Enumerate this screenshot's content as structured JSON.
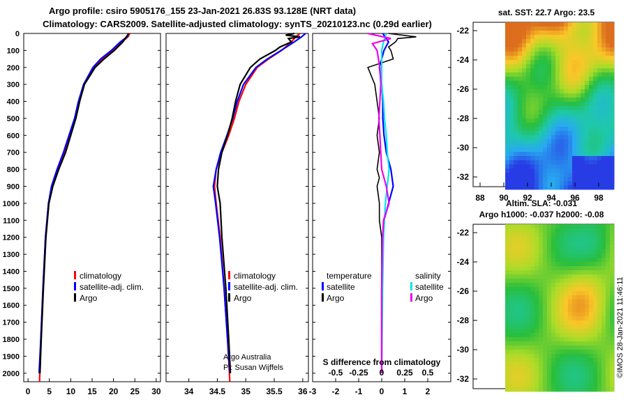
{
  "header": {
    "line1": "Argo profile: csiro 5905176_155 23-Jan-2021 26.83S 93.128E (NRT data)",
    "line2": "Climatology: CARS2009. Satellite-adjusted climatology: synTS_20210123.nc (0.29d earlier)"
  },
  "colors": {
    "climatology": "#ff0000",
    "satellite_adj": "#0000ff",
    "argo": "#000000",
    "sat_salinity": "#00e5ee",
    "argo_salinity": "#ee00ee"
  },
  "chart_data": [
    {
      "type": "line",
      "panel": "temperature",
      "ylabel": "",
      "ylim": [
        2050,
        0
      ],
      "xlim": [
        -1,
        31
      ],
      "y_ticks": [
        0,
        100,
        200,
        300,
        400,
        500,
        600,
        700,
        800,
        900,
        1000,
        1100,
        1200,
        1300,
        1400,
        1500,
        1600,
        1700,
        1800,
        1900,
        2000
      ],
      "x_ticks": [
        0,
        5,
        10,
        15,
        20,
        25,
        30
      ],
      "legend": [
        "climatology",
        "satellite-adj. clim.",
        "Argo"
      ],
      "series": [
        {
          "name": "climatology",
          "color": "#ff0000",
          "depth": [
            0,
            20,
            50,
            100,
            150,
            200,
            300,
            400,
            500,
            600,
            700,
            800,
            900,
            1000,
            1200,
            1500,
            1800,
            2050
          ],
          "values": [
            23.8,
            23.4,
            22.0,
            19.8,
            17.3,
            15.4,
            13.1,
            11.9,
            11.0,
            9.8,
            8.5,
            6.9,
            5.6,
            4.8,
            4.1,
            3.5,
            3.0,
            2.7
          ]
        },
        {
          "name": "satellite-adj. clim.",
          "color": "#0000ff",
          "depth": [
            0,
            20,
            50,
            100,
            150,
            200,
            300,
            400,
            500,
            600,
            700,
            800,
            900,
            1000,
            1200,
            1500,
            1800,
            2000
          ],
          "values": [
            23.5,
            23.2,
            21.6,
            19.5,
            17.0,
            15.2,
            13.0,
            11.8,
            10.9,
            9.6,
            8.3,
            6.8,
            5.5,
            4.8,
            4.1,
            3.5,
            3.0,
            2.6
          ]
        },
        {
          "name": "Argo",
          "color": "#000000",
          "depth": [
            0,
            20,
            50,
            100,
            150,
            200,
            300,
            400,
            500,
            600,
            700,
            800,
            900,
            1000,
            1200,
            1500,
            1800,
            2000
          ],
          "values": [
            23.6,
            23.0,
            22.2,
            20.2,
            17.8,
            15.7,
            13.2,
            12.1,
            11.2,
            10.0,
            8.8,
            7.2,
            5.8,
            4.9,
            4.2,
            3.6,
            3.1,
            2.8
          ]
        }
      ]
    },
    {
      "type": "line",
      "panel": "salinity",
      "ylim": [
        2050,
        0
      ],
      "xlim": [
        33.6,
        36.1
      ],
      "x_ticks": [
        34,
        34.5,
        35,
        35.5,
        36
      ],
      "x_tick_labels": [
        "34",
        "34.5",
        "35",
        "35.5",
        "36"
      ],
      "legend": [
        "climatology",
        "satellite-adj. clim.",
        "Argo"
      ],
      "credit": [
        "Argo Australia",
        "PI: Susan Wijffels"
      ],
      "series": [
        {
          "name": "climatology",
          "color": "#ff0000",
          "depth": [
            0,
            20,
            50,
            100,
            150,
            200,
            300,
            400,
            500,
            600,
            700,
            800,
            900,
            1000,
            1200,
            1500,
            1800,
            2050
          ],
          "values": [
            35.95,
            35.88,
            35.8,
            35.63,
            35.4,
            35.2,
            35.0,
            34.88,
            34.8,
            34.7,
            34.58,
            34.48,
            34.45,
            34.48,
            34.55,
            34.62,
            34.68,
            34.72
          ]
        },
        {
          "name": "satellite-adj. clim.",
          "color": "#0000ff",
          "depth": [
            0,
            20,
            50,
            100,
            150,
            200,
            300,
            400,
            500,
            600,
            700,
            800,
            900,
            1000,
            1200,
            1500,
            1800,
            2000
          ],
          "values": [
            36.05,
            35.98,
            35.85,
            35.62,
            35.38,
            35.18,
            34.96,
            34.85,
            34.77,
            34.67,
            34.56,
            34.48,
            34.43,
            34.47,
            34.54,
            34.62,
            34.68,
            34.72
          ]
        },
        {
          "name": "Argo",
          "color": "#000000",
          "depth": [
            0,
            10,
            20,
            30,
            50,
            80,
            100,
            150,
            200,
            300,
            400,
            500,
            600,
            700,
            800,
            900,
            1000,
            1200,
            1500,
            1800,
            2000
          ],
          "values": [
            35.85,
            35.7,
            35.95,
            35.75,
            35.8,
            35.6,
            35.52,
            35.25,
            35.08,
            34.9,
            34.82,
            34.76,
            34.68,
            34.58,
            34.52,
            34.5,
            34.55,
            34.58,
            34.65,
            34.7,
            34.73
          ]
        }
      ]
    },
    {
      "type": "line",
      "panel": "difference",
      "title": "S difference from climatology",
      "ylim": [
        2050,
        0
      ],
      "xlim": [
        -3,
        3
      ],
      "x_ticks": [
        -3,
        -2,
        -1,
        0,
        1,
        2
      ],
      "x_tick_labels": [
        "-3",
        "-2",
        "-1",
        "0",
        "1",
        "2"
      ],
      "sal_ticks": [
        -0.5,
        -0.25,
        0,
        0.25,
        0.5
      ],
      "sal_tick_labels": [
        "-0.5",
        "-0.25",
        "0",
        "0.25",
        "0.5"
      ],
      "legend": {
        "temperature_title": "temperature",
        "salinity_title": "salinity",
        "items": [
          "satellite",
          "Argo",
          "satellite",
          "Argo"
        ]
      },
      "series": [
        {
          "name": "temperature satellite",
          "color": "#0000ff",
          "depth": [
            0,
            50,
            100,
            150,
            200,
            300,
            400,
            500,
            600,
            700,
            800,
            900,
            1000,
            1100,
            1200,
            1500,
            2000
          ],
          "values": [
            0.05,
            0.3,
            0.1,
            0.0,
            -0.1,
            0.0,
            0.05,
            0.05,
            0.1,
            0.2,
            0.4,
            0.5,
            0.3,
            0.1,
            0.05,
            0.0,
            0.0
          ]
        },
        {
          "name": "temperature Argo",
          "color": "#000000",
          "depth": [
            0,
            20,
            30,
            50,
            80,
            100,
            150,
            200,
            300,
            400,
            500,
            600,
            700,
            800,
            850,
            900,
            1000,
            1100,
            1200,
            1500,
            2000
          ],
          "values": [
            0.3,
            1.5,
            0.7,
            0.6,
            0.3,
            0.4,
            0.5,
            -0.6,
            -0.3,
            -0.2,
            -0.1,
            -0.2,
            -0.1,
            -0.2,
            -0.1,
            -0.2,
            -0.1,
            -0.1,
            0.0,
            0.0,
            0.0
          ]
        },
        {
          "name": "salinity satellite",
          "color": "#00e5ee",
          "depth": [
            0,
            50,
            100,
            200,
            300,
            400,
            500,
            600,
            700,
            800,
            900,
            1000,
            1200,
            1500,
            2000
          ],
          "values": [
            0.05,
            0.02,
            0.0,
            0.0,
            0.0,
            0.02,
            0.03,
            0.05,
            0.06,
            0.08,
            0.06,
            0.04,
            0.02,
            0.01,
            0.0
          ]
        },
        {
          "name": "salinity Argo",
          "color": "#ee00ee",
          "depth": [
            0,
            30,
            60,
            100,
            200,
            300,
            400,
            500,
            600,
            700,
            800,
            900,
            1000,
            1100,
            1200,
            1500,
            2000
          ],
          "values": [
            -0.15,
            0.1,
            -0.1,
            -0.05,
            -0.02,
            -0.01,
            -0.02,
            -0.03,
            -0.02,
            -0.01,
            0.0,
            0.05,
            0.08,
            0.02,
            0.01,
            0.0,
            0.0
          ]
        }
      ]
    },
    {
      "type": "heatmap",
      "panel": "sst_map",
      "title": "sat. SST: 22.7 Argo: 23.5",
      "lat_ticks": [
        -22,
        -24,
        -26,
        -28,
        -30,
        -32
      ],
      "lat_tick_labels": [
        "-22",
        "-24",
        "-26",
        "-28",
        "-30",
        "-32"
      ],
      "lon_ticks": [
        88,
        90,
        92,
        94,
        96,
        98
      ],
      "lon_tick_labels": [
        "88",
        "90",
        "92",
        "94",
        "96",
        "98"
      ]
    },
    {
      "type": "heatmap",
      "panel": "sla_map",
      "title_line1": "Altim. SLA: -0.031",
      "title_line2": "Argo h1000: -0.037 h2000: -0.08",
      "lat_ticks": [
        -22,
        -24,
        -26,
        -28,
        -30,
        -32
      ],
      "lat_tick_labels": [
        "-22",
        "-24",
        "-26",
        "-28",
        "-30",
        "-32"
      ]
    }
  ],
  "footer": {
    "stamp": "©IMOS 28-Jan-2021 11:46:11"
  }
}
